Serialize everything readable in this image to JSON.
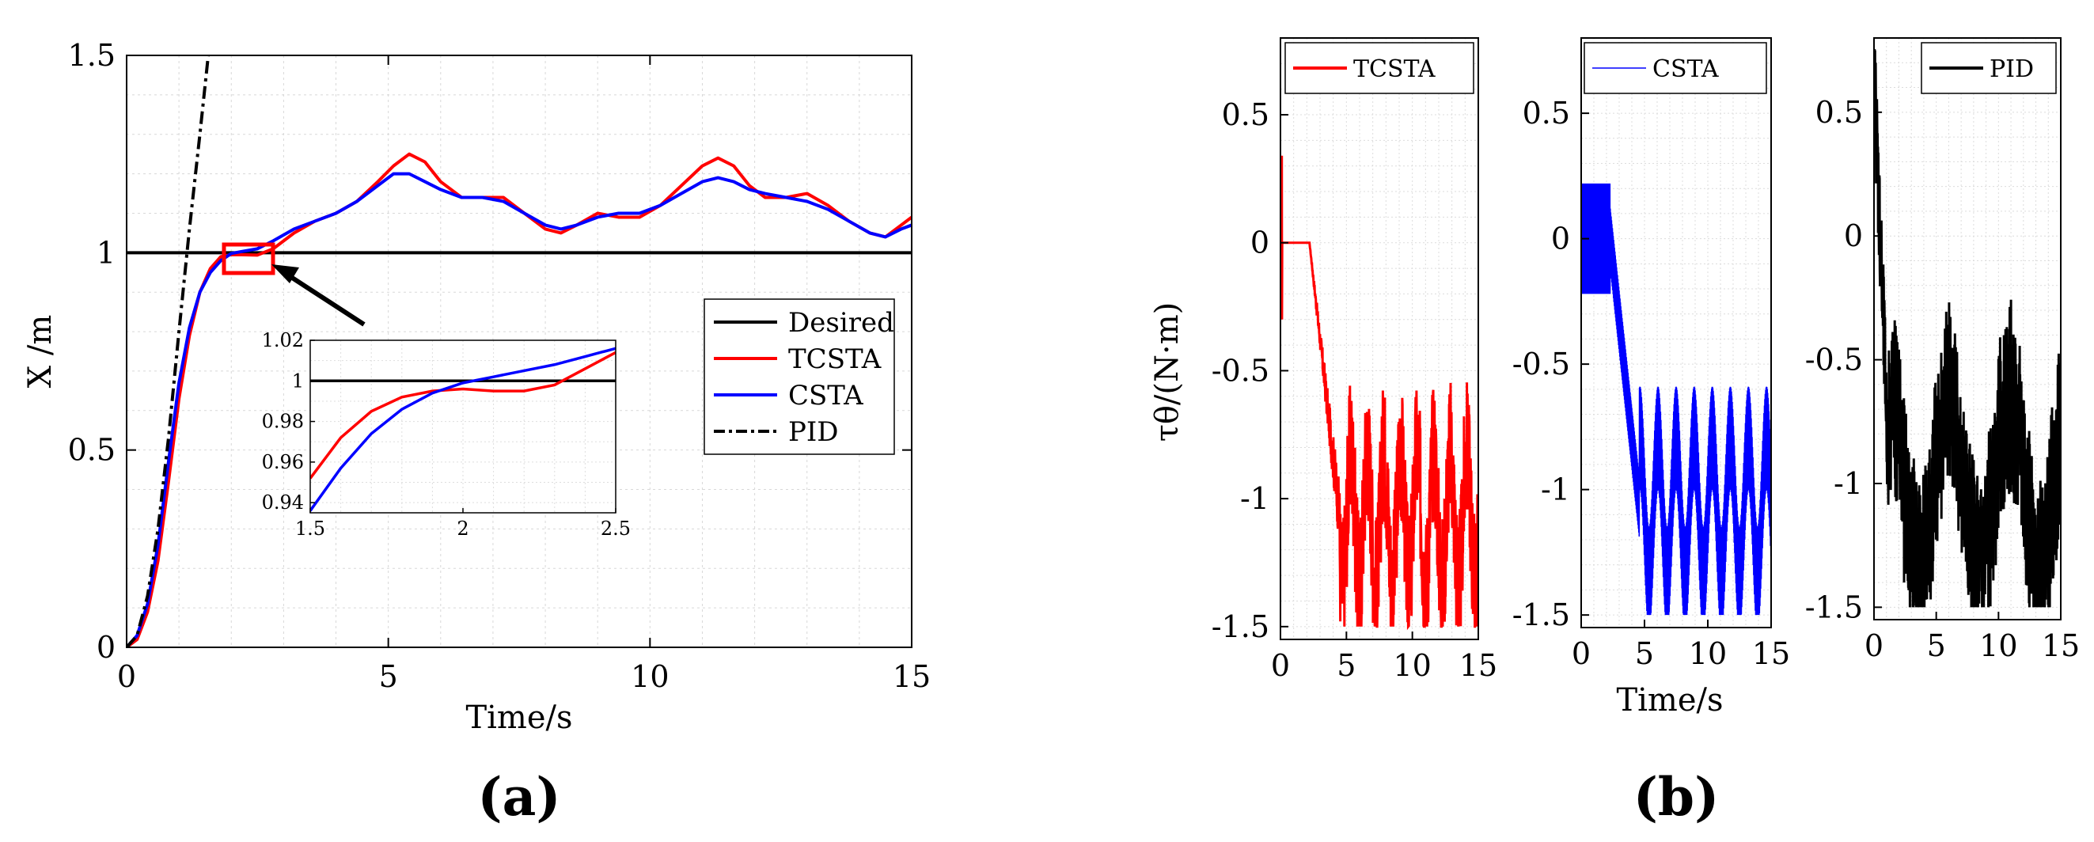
{
  "chart_data": [
    {
      "panel_label": "(a)",
      "type": "line",
      "xlabel": "Time/s",
      "ylabel": "X /m",
      "xlim": [
        0,
        15
      ],
      "ylim": [
        0,
        1.5
      ],
      "xticks": [
        "0",
        "5",
        "10",
        "15"
      ],
      "yticks": [
        "0",
        "0.5",
        "1",
        "1.5"
      ],
      "grid": true,
      "legend_position": "center-right",
      "series": [
        {
          "name": "Desired",
          "color": "#000000",
          "style": "solid",
          "x": [
            0,
            15
          ],
          "y": [
            1,
            1
          ]
        },
        {
          "name": "TCSTA",
          "color": "#ff0000",
          "style": "solid",
          "x": [
            0,
            0.2,
            0.4,
            0.6,
            0.8,
            1.0,
            1.2,
            1.4,
            1.6,
            1.8,
            2.0,
            2.2,
            2.5,
            2.8,
            3.2,
            3.6,
            4.0,
            4.4,
            4.8,
            5.1,
            5.4,
            5.7,
            6.0,
            6.4,
            6.8,
            7.2,
            7.6,
            8.0,
            8.3,
            8.6,
            9.0,
            9.4,
            9.8,
            10.2,
            10.6,
            11.0,
            11.3,
            11.6,
            11.9,
            12.2,
            12.6,
            13.0,
            13.4,
            13.8,
            14.2,
            14.5,
            14.8,
            15.0
          ],
          "y": [
            0,
            0.02,
            0.09,
            0.22,
            0.42,
            0.63,
            0.79,
            0.9,
            0.96,
            0.99,
            0.995,
            0.995,
            0.994,
            1.01,
            1.05,
            1.08,
            1.1,
            1.13,
            1.18,
            1.22,
            1.25,
            1.23,
            1.18,
            1.14,
            1.14,
            1.14,
            1.1,
            1.06,
            1.05,
            1.07,
            1.1,
            1.09,
            1.09,
            1.12,
            1.17,
            1.22,
            1.24,
            1.22,
            1.17,
            1.14,
            1.14,
            1.15,
            1.12,
            1.08,
            1.05,
            1.04,
            1.07,
            1.09
          ]
        },
        {
          "name": "CSTA",
          "color": "#0000ff",
          "style": "solid",
          "x": [
            0,
            0.2,
            0.4,
            0.6,
            0.8,
            1.0,
            1.2,
            1.4,
            1.6,
            1.8,
            2.0,
            2.2,
            2.5,
            2.8,
            3.2,
            3.6,
            4.0,
            4.4,
            4.8,
            5.1,
            5.4,
            5.7,
            6.0,
            6.4,
            6.8,
            7.2,
            7.6,
            8.0,
            8.3,
            8.6,
            9.0,
            9.4,
            9.8,
            10.2,
            10.6,
            11.0,
            11.3,
            11.6,
            11.9,
            12.2,
            12.6,
            13.0,
            13.4,
            13.8,
            14.2,
            14.5,
            14.8,
            15.0
          ],
          "y": [
            0,
            0.03,
            0.11,
            0.26,
            0.47,
            0.67,
            0.81,
            0.9,
            0.95,
            0.98,
            0.998,
            1.003,
            1.01,
            1.03,
            1.06,
            1.08,
            1.1,
            1.13,
            1.17,
            1.2,
            1.2,
            1.18,
            1.16,
            1.14,
            1.14,
            1.13,
            1.1,
            1.07,
            1.06,
            1.07,
            1.09,
            1.1,
            1.1,
            1.12,
            1.15,
            1.18,
            1.19,
            1.18,
            1.16,
            1.15,
            1.14,
            1.13,
            1.11,
            1.08,
            1.05,
            1.04,
            1.06,
            1.07
          ]
        },
        {
          "name": "PID",
          "color": "#000000",
          "style": "dashdot",
          "x": [
            0,
            0.2,
            0.4,
            0.6,
            0.8,
            1.0,
            1.2,
            1.4,
            1.6
          ],
          "y": [
            0,
            0.03,
            0.13,
            0.3,
            0.53,
            0.8,
            1.06,
            1.3,
            1.55
          ]
        }
      ],
      "inset": {
        "xlim": [
          1.5,
          2.5
        ],
        "ylim": [
          0.935,
          1.02
        ],
        "xticks": [
          "1.5",
          "2",
          "2.5"
        ],
        "yticks": [
          "0.94",
          "0.96",
          "0.98",
          "1",
          "1.02"
        ],
        "series": [
          {
            "name": "Desired",
            "color": "#000000",
            "x": [
              1.5,
              2.5
            ],
            "y": [
              1,
              1
            ]
          },
          {
            "name": "TCSTA",
            "color": "#ff0000",
            "x": [
              1.5,
              1.6,
              1.7,
              1.8,
              1.9,
              2.0,
              2.1,
              2.2,
              2.3,
              2.4,
              2.5
            ],
            "y": [
              0.952,
              0.972,
              0.985,
              0.992,
              0.995,
              0.996,
              0.995,
              0.995,
              0.998,
              1.006,
              1.014
            ]
          },
          {
            "name": "CSTA",
            "color": "#0000ff",
            "x": [
              1.5,
              1.6,
              1.7,
              1.8,
              1.9,
              2.0,
              2.1,
              2.2,
              2.3,
              2.4,
              2.5
            ],
            "y": [
              0.936,
              0.957,
              0.974,
              0.986,
              0.994,
              0.999,
              1.002,
              1.005,
              1.008,
              1.012,
              1.016
            ]
          }
        ]
      }
    },
    {
      "panel_label": "(b)",
      "type": "line",
      "ylabel": "τθ/(N·m)",
      "xlabel": "Time/s",
      "subplots": [
        {
          "name": "TCSTA",
          "color": "#ff0000",
          "xlim": [
            0,
            15
          ],
          "ylim": [
            -1.55,
            0.8
          ],
          "xticks": [
            "0",
            "5",
            "10",
            "15"
          ],
          "yticks": [
            "0.5",
            "0",
            "-0.5",
            "-1",
            "-1.5"
          ],
          "signal": {
            "transient_min": -0.3,
            "transient_max": 0.34,
            "flat_until": 2.2,
            "drop_end": 4.5,
            "steady_low": -1.5,
            "steady_high": -0.75,
            "noise": 0.12,
            "ripple": 0.28
          }
        },
        {
          "name": "CSTA",
          "color": "#0000ff",
          "xlim": [
            0,
            15
          ],
          "ylim": [
            -1.55,
            0.8
          ],
          "xticks": [
            "0",
            "5",
            "10",
            "15"
          ],
          "yticks": [
            "0.5",
            "0",
            "-0.5",
            "-1",
            "-1.5"
          ],
          "signal": {
            "chatter_high": 0.22,
            "chatter_low": -0.22,
            "flat_until": 2.3,
            "drop_end": 4.6,
            "steady_low": -1.5,
            "steady_high": -0.75,
            "noise": 0.06,
            "ripple": 0.34
          }
        },
        {
          "name": "PID",
          "color": "#000000",
          "xlim": [
            0,
            15
          ],
          "ylim": [
            -1.55,
            0.8
          ],
          "xticks": [
            "0",
            "5",
            "10",
            "15"
          ],
          "yticks": [
            "0.5",
            "0",
            "-0.5",
            "-1",
            "-1.5"
          ],
          "signal": {
            "start": 0.7,
            "decay_to": -1.0,
            "steady_low": -1.5,
            "steady_high": -0.4,
            "noise": 0.25,
            "ripple": 0.3
          }
        }
      ]
    }
  ]
}
